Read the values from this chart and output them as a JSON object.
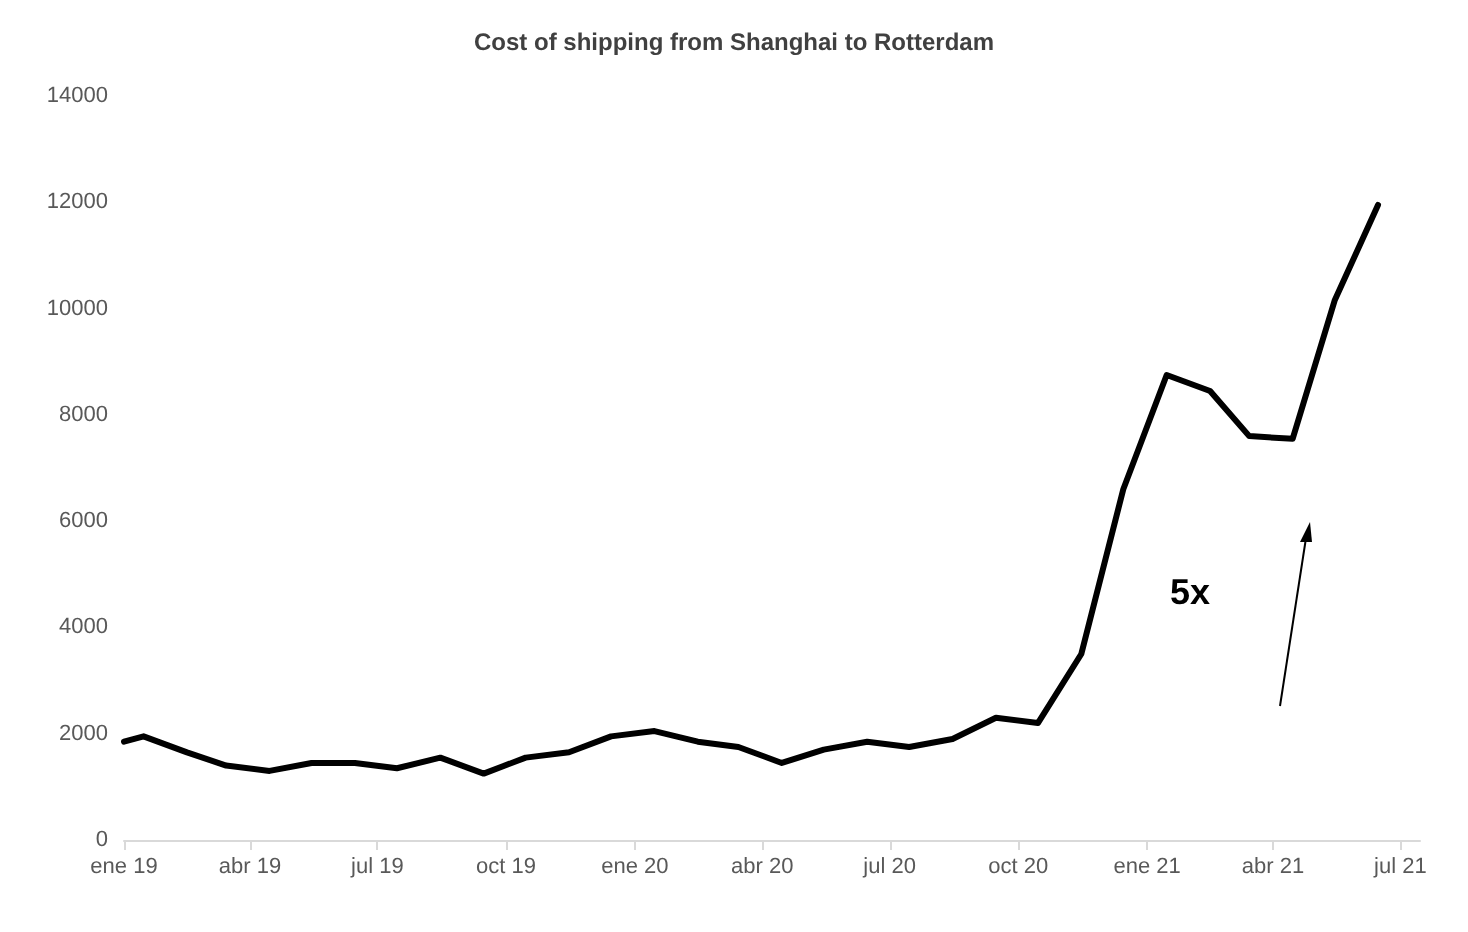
{
  "chart_data": {
    "type": "line",
    "title": "Cost of shipping from Shanghai to Rotterdam",
    "x": [
      "2019-01-01",
      "2019-01-15",
      "2019-02-15",
      "2019-03-15",
      "2019-04-15",
      "2019-05-15",
      "2019-06-15",
      "2019-07-15",
      "2019-08-15",
      "2019-09-15",
      "2019-10-15",
      "2019-11-15",
      "2019-12-15",
      "2020-01-15",
      "2020-02-15",
      "2020-03-15",
      "2020-04-15",
      "2020-05-15",
      "2020-06-15",
      "2020-07-15",
      "2020-08-15",
      "2020-09-15",
      "2020-10-15",
      "2020-11-15",
      "2020-12-15",
      "2021-01-15",
      "2021-02-15",
      "2021-03-15",
      "2021-04-15",
      "2021-05-15",
      "2021-06-15"
    ],
    "series": [
      {
        "color": "#000000",
        "values": [
          1850,
          1950,
          1650,
          1400,
          1300,
          1450,
          1450,
          1350,
          1550,
          1250,
          1550,
          1650,
          1950,
          2050,
          1850,
          1750,
          1450,
          1700,
          1850,
          1750,
          1900,
          2300,
          2200,
          3500,
          6600,
          8750,
          8450,
          7600,
          7550,
          10150,
          11950
        ]
      }
    ],
    "xlim": [
      "2019-01-01",
      "2021-07-15"
    ],
    "xticks": [
      {
        "value": "2019-01-01",
        "label": "ene 19"
      },
      {
        "value": "2019-04-01",
        "label": "abr 19"
      },
      {
        "value": "2019-07-01",
        "label": "jul 19"
      },
      {
        "value": "2019-10-01",
        "label": "oct 19"
      },
      {
        "value": "2020-01-01",
        "label": "ene 20"
      },
      {
        "value": "2020-04-01",
        "label": "abr 20"
      },
      {
        "value": "2020-07-01",
        "label": "jul 20"
      },
      {
        "value": "2020-10-01",
        "label": "oct 20"
      },
      {
        "value": "2021-01-01",
        "label": "ene 21"
      },
      {
        "value": "2021-04-01",
        "label": "abr 21"
      },
      {
        "value": "2021-07-01",
        "label": "jul 21"
      }
    ],
    "ylim": [
      0,
      14000
    ],
    "yticks": [
      0,
      2000,
      4000,
      6000,
      8000,
      10000,
      12000,
      14000
    ],
    "annotations": [
      "5x"
    ],
    "line_style": "solid"
  }
}
